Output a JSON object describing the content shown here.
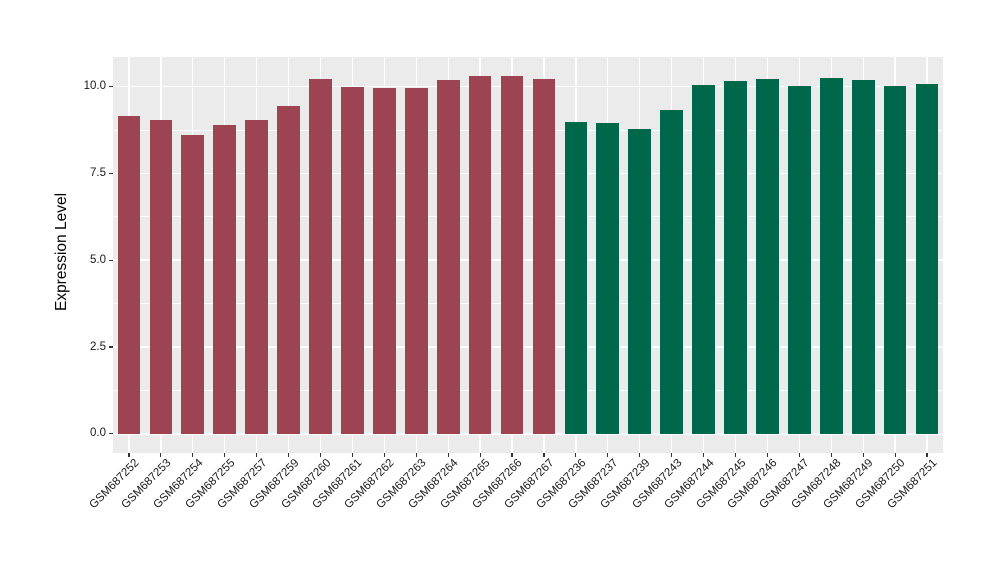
{
  "chart_data": {
    "type": "bar",
    "title": "",
    "xlabel": "",
    "ylabel": "Expression Level",
    "categories": [
      "GSM687252",
      "GSM687253",
      "GSM687254",
      "GSM687255",
      "GSM687257",
      "GSM687259",
      "GSM687260",
      "GSM687261",
      "GSM687262",
      "GSM687263",
      "GSM687264",
      "GSM687265",
      "GSM687266",
      "GSM687267",
      "GSM687236",
      "GSM687237",
      "GSM687239",
      "GSM687243",
      "GSM687244",
      "GSM687245",
      "GSM687246",
      "GSM687247",
      "GSM687248",
      "GSM687249",
      "GSM687250",
      "GSM687251"
    ],
    "values": [
      9.15,
      9.05,
      8.61,
      8.9,
      9.05,
      9.45,
      10.22,
      10.0,
      9.95,
      9.97,
      10.2,
      10.31,
      10.29,
      10.22,
      8.97,
      8.96,
      8.78,
      9.33,
      10.03,
      10.16,
      10.21,
      10.02,
      10.24,
      10.18,
      10.02,
      10.07
    ],
    "bar_groups": [
      "A",
      "A",
      "A",
      "A",
      "A",
      "A",
      "A",
      "A",
      "A",
      "A",
      "A",
      "A",
      "A",
      "A",
      "B",
      "B",
      "B",
      "B",
      "B",
      "B",
      "B",
      "B",
      "B",
      "B",
      "B",
      "B"
    ],
    "group_colors": {
      "A": "#9C4452",
      "B": "#00684A"
    },
    "ytick_values": [
      0,
      2.5,
      5,
      7.5,
      10
    ],
    "ytick_labels": [
      "0.0",
      "2.5",
      "5.0",
      "7.5",
      "10.0"
    ],
    "minor_tick_values": [
      1.25,
      3.75,
      6.25,
      8.75
    ],
    "ylim": [
      -0.55,
      10.85
    ],
    "bar_width_fraction": 0.71,
    "x_label_rotation_deg": -45,
    "legend": "none",
    "grid": "horizontal major+minor, vertical major at bar centers",
    "panel_background": "#EBEBEB",
    "gridline_color": "#FFFFFF",
    "axis_text_color": "#1A1A1A",
    "tick_mark_color": "#333333"
  }
}
